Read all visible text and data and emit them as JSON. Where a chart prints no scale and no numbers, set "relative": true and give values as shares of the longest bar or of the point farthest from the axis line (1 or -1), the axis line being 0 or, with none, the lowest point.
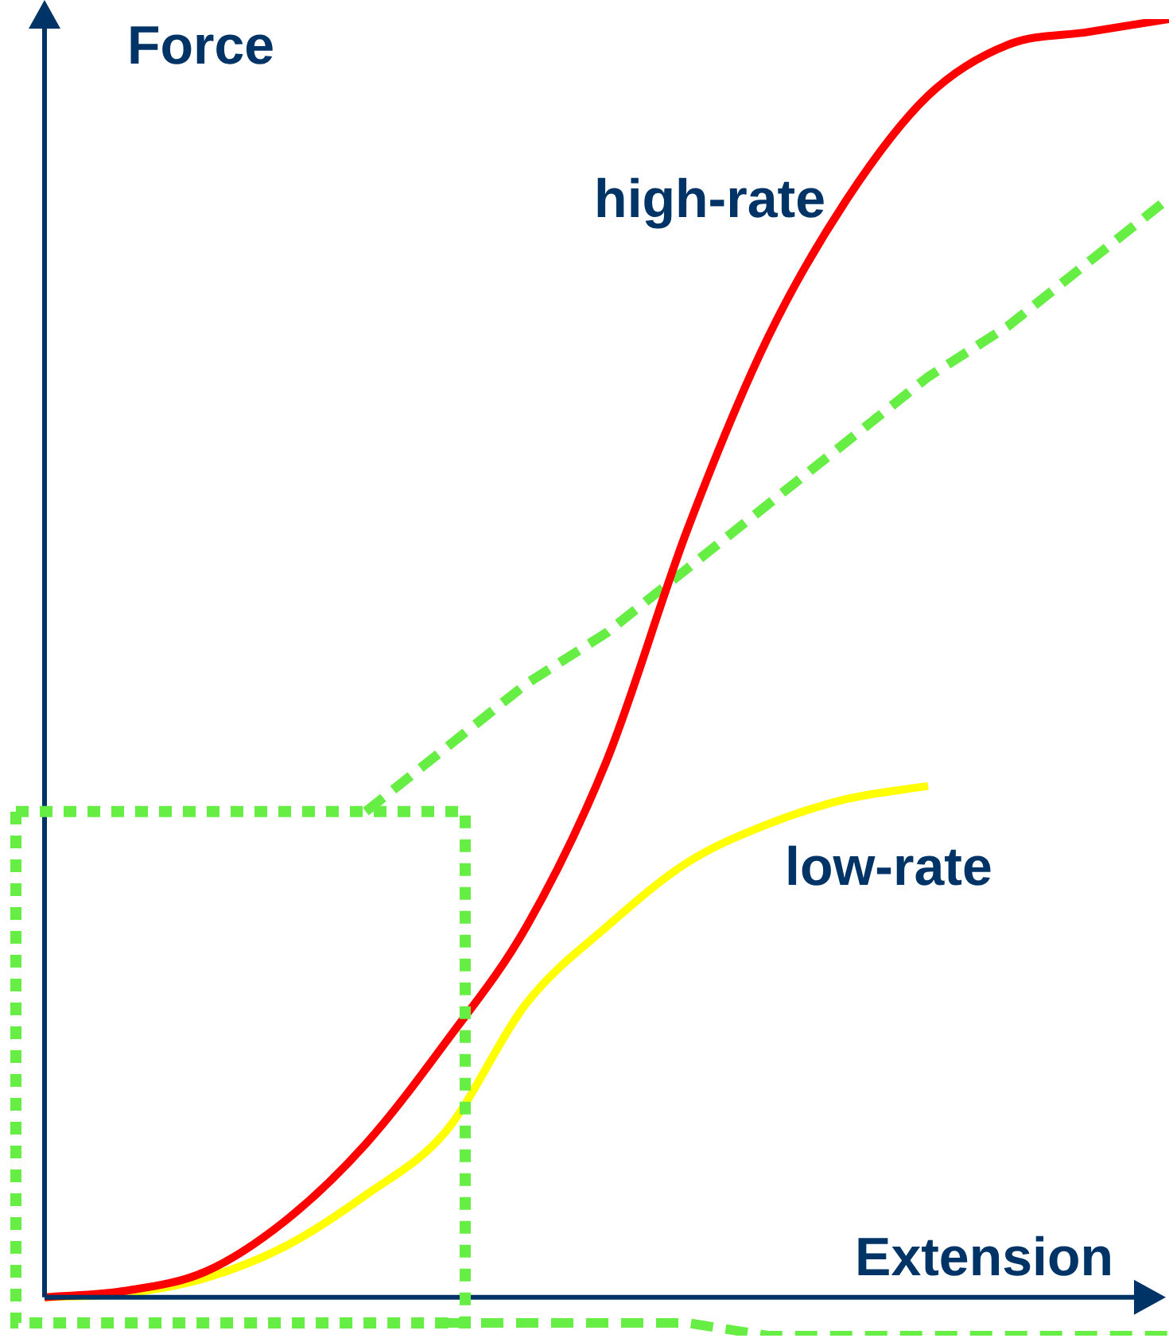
{
  "chart_data": {
    "type": "line",
    "relative": true,
    "xlabel": "Extension",
    "ylabel": "Force",
    "marker": "none",
    "ref_lines": [
      {
        "axis": "y",
        "value": 0,
        "color": "#003366"
      }
    ],
    "line_style": "solid",
    "categories": [
      null,
      null,
      null,
      null,
      null,
      null,
      null,
      null,
      null,
      null,
      null,
      null,
      null,
      null,
      null
    ],
    "series": [
      {
        "name": "high-rate",
        "color": "#ff0000",
        "values": [
          0,
          0.005,
          0.02,
          0.06,
          0.12,
          0.2,
          0.29,
          0.42,
          0.6,
          0.75,
          0.86,
          0.94,
          0.98,
          0.99,
          1
        ]
      },
      {
        "name": "low-rate",
        "color": "#ffff00",
        "values": [
          0,
          0.003,
          0.015,
          0.04,
          0.08,
          0.13,
          0.23,
          0.29,
          0.34,
          0.37,
          0.39,
          0.4,
          null,
          null,
          null
        ]
      },
      {
        "color": "#66ee44",
        "line_style": "dashed",
        "values": [
          null,
          null,
          null,
          null,
          0.38,
          0.43,
          0.48,
          0.52,
          0.57,
          0.62,
          0.67,
          0.72,
          0.76,
          0.81,
          0.86
        ]
      },
      {
        "color": "#66ee44",
        "line_style": "dashed",
        "values": [
          null,
          null,
          null,
          null,
          null,
          -0.02,
          -0.02,
          -0.02,
          -0.02,
          -0.03,
          -0.03,
          -0.03,
          -0.03,
          -0.03,
          -0.03
        ]
      }
    ]
  }
}
